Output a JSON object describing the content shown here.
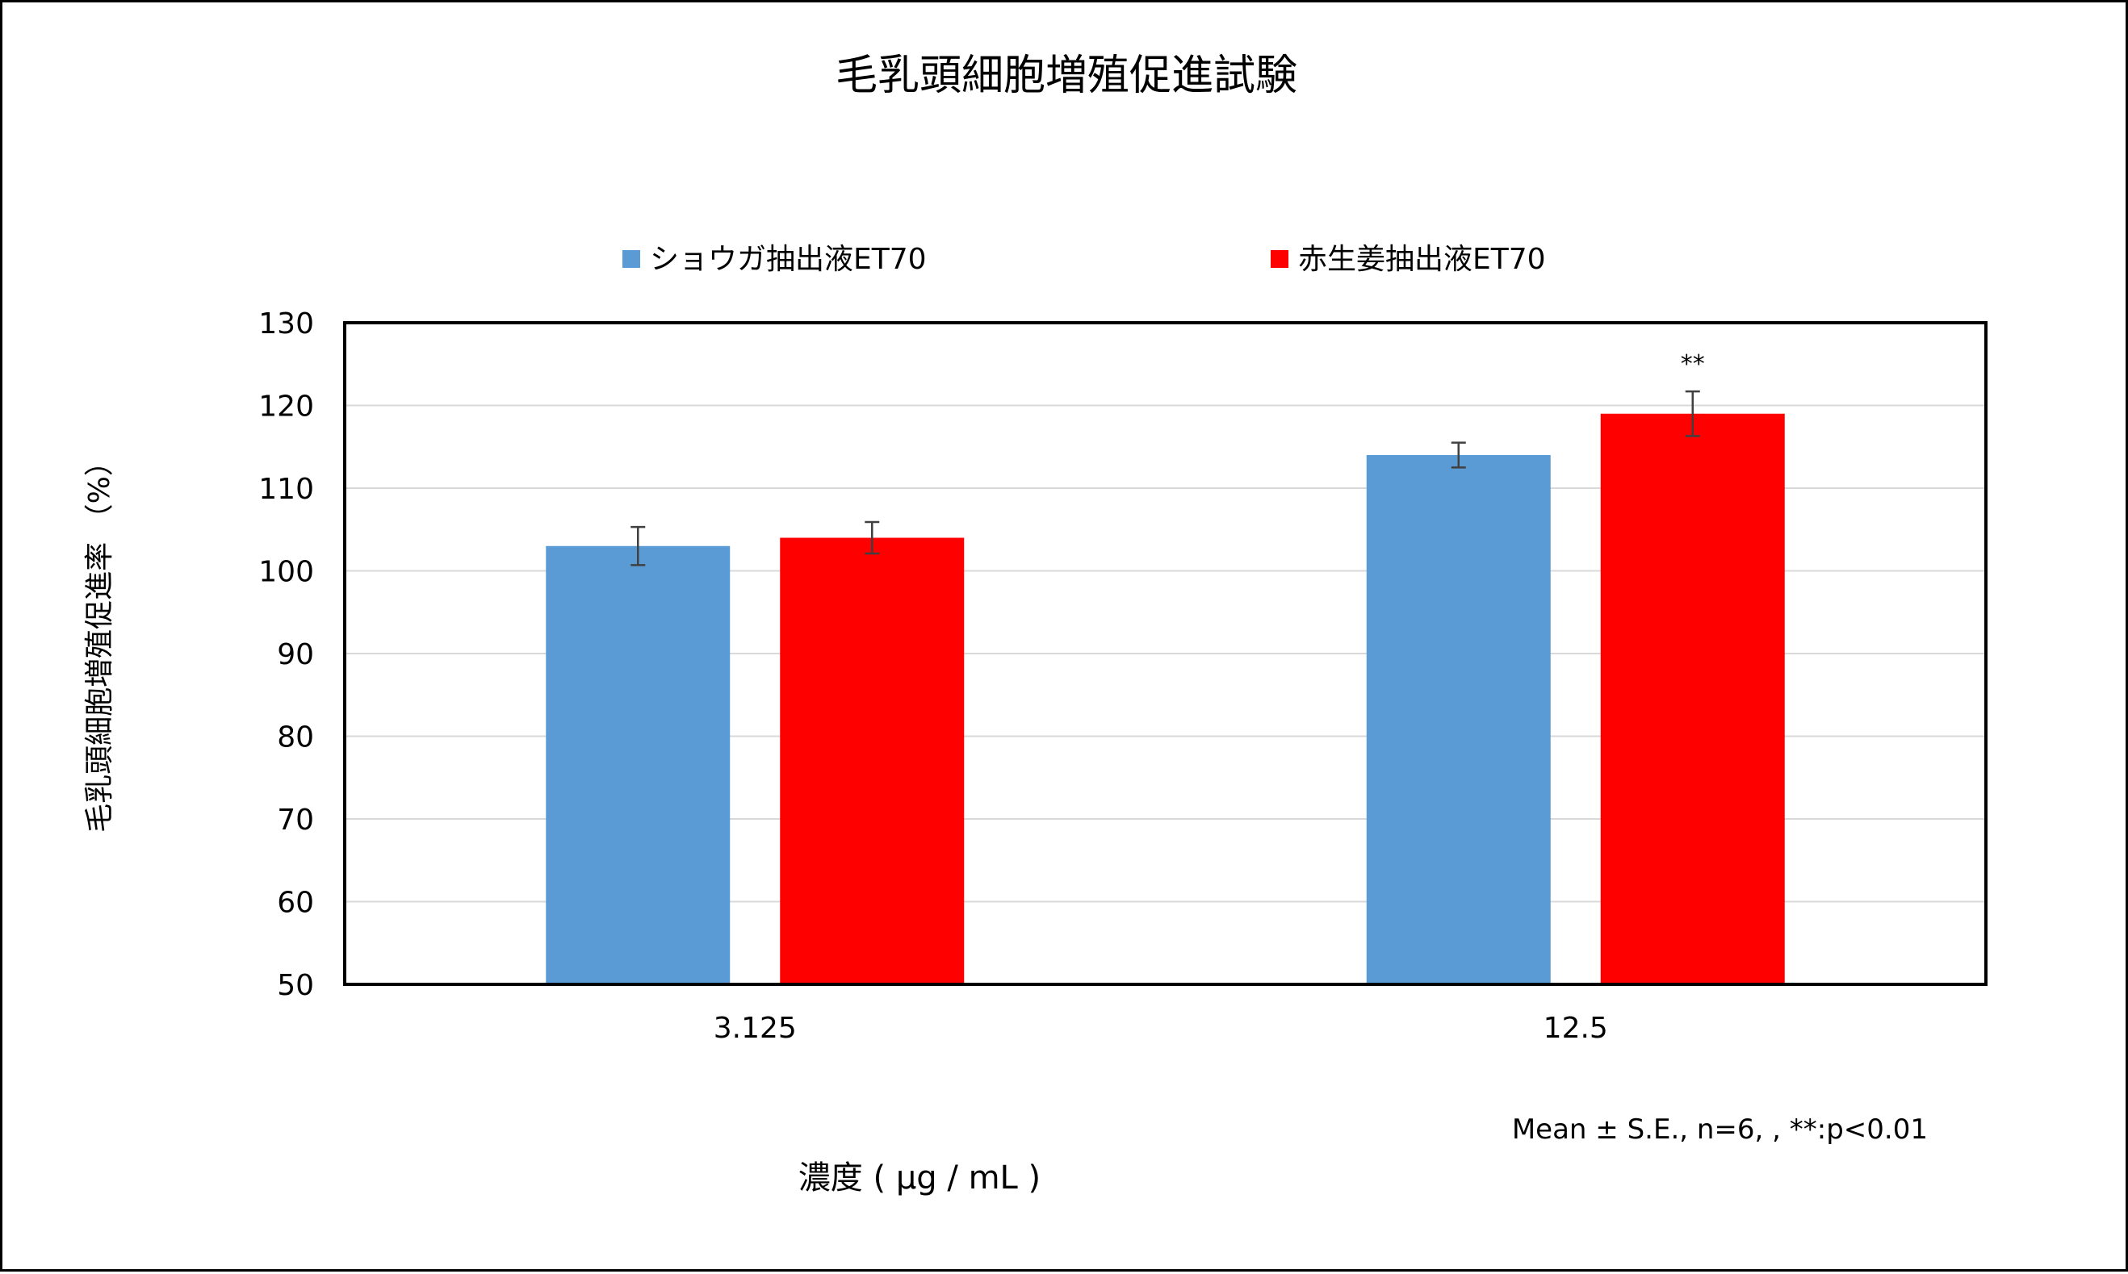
{
  "chart_data": {
    "type": "bar",
    "title": "毛乳頭細胞増殖促進試験",
    "xlabel": "濃度 ( µg / mL )",
    "ylabel": "毛乳頭細胞増殖促進率 （%）",
    "categories": [
      "3.125",
      "12.5"
    ],
    "series": [
      {
        "name": "ショウガ抽出液ET70",
        "color": "#5b9bd5",
        "values": [
          103,
          114
        ],
        "errors": [
          2.3,
          1.5
        ],
        "significance": [
          "",
          ""
        ]
      },
      {
        "name": "赤生姜抽出液ET70",
        "color": "#ff0000",
        "values": [
          104,
          119
        ],
        "errors": [
          1.9,
          2.7
        ],
        "significance": [
          "",
          "**"
        ]
      }
    ],
    "ylim": [
      50,
      130
    ],
    "yticks": [
      50,
      60,
      70,
      80,
      90,
      100,
      110,
      120,
      130
    ],
    "grid": true,
    "legend_position": "top",
    "note": "Mean ± S.E., n=6, , **:p<0.01"
  }
}
